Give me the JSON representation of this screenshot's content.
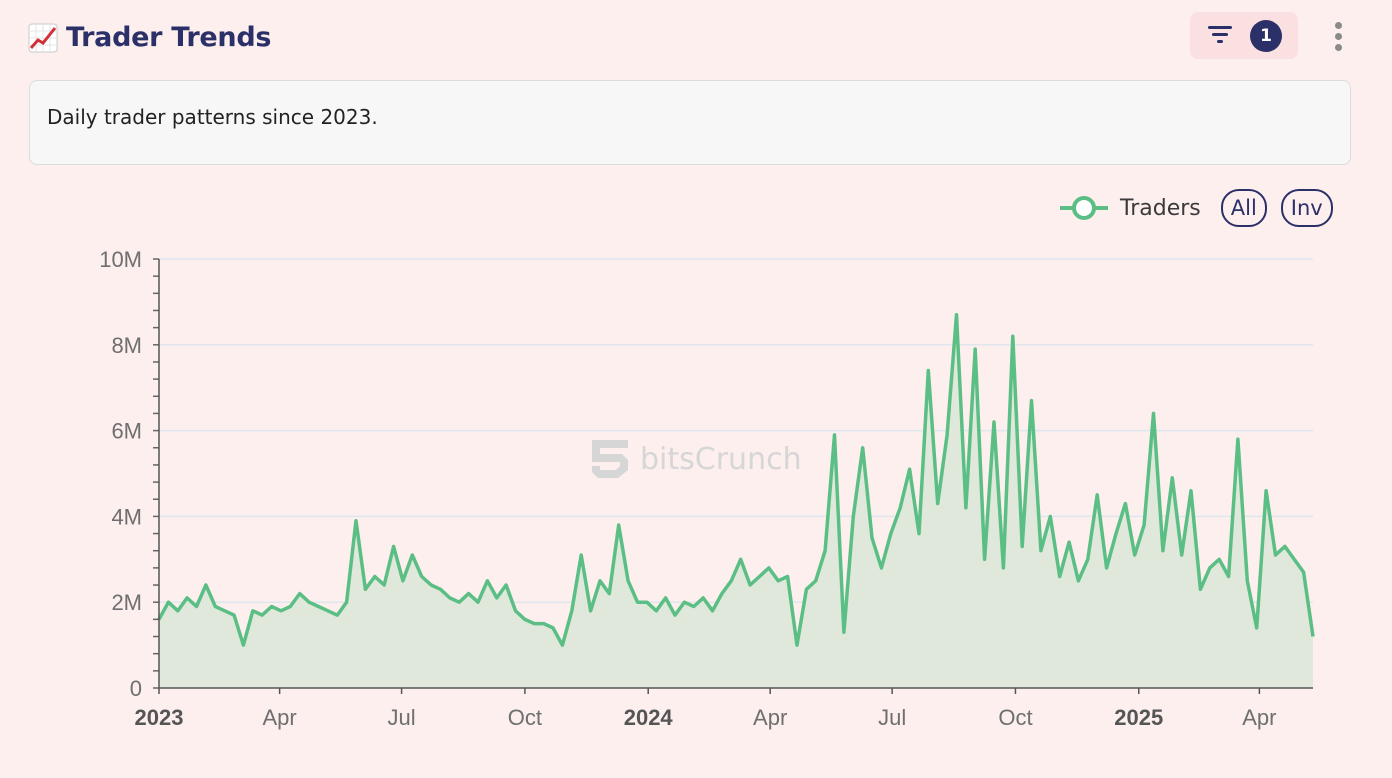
{
  "header": {
    "title": "Trader Trends",
    "emoji_icon": "chart-increasing-icon",
    "filter_icon": "filter-icon",
    "filter_count": "1",
    "menu_icon": "kebab-menu-icon"
  },
  "description": "Daily trader patterns since 2023.",
  "legend": {
    "series_label": "Traders",
    "all_label": "All",
    "inv_label": "Inv"
  },
  "watermark": "bitsCrunch",
  "colors": {
    "line": "#5bbf85",
    "area": "#dfe8da",
    "accent": "#2b3068"
  },
  "chart_data": {
    "type": "area",
    "series": [
      {
        "name": "Traders",
        "points": [
          [
            "2023-01-01",
            1.6
          ],
          [
            "2023-01-08",
            2.0
          ],
          [
            "2023-01-15",
            1.8
          ],
          [
            "2023-01-22",
            2.1
          ],
          [
            "2023-01-29",
            1.9
          ],
          [
            "2023-02-05",
            2.4
          ],
          [
            "2023-02-12",
            1.9
          ],
          [
            "2023-02-19",
            1.8
          ],
          [
            "2023-02-26",
            1.7
          ],
          [
            "2023-03-05",
            1.0
          ],
          [
            "2023-03-12",
            1.8
          ],
          [
            "2023-03-19",
            1.7
          ],
          [
            "2023-03-26",
            1.9
          ],
          [
            "2023-04-02",
            1.8
          ],
          [
            "2023-04-09",
            1.9
          ],
          [
            "2023-04-16",
            2.2
          ],
          [
            "2023-04-23",
            2.0
          ],
          [
            "2023-04-30",
            1.9
          ],
          [
            "2023-05-07",
            1.8
          ],
          [
            "2023-05-14",
            1.7
          ],
          [
            "2023-05-21",
            2.0
          ],
          [
            "2023-05-28",
            3.9
          ],
          [
            "2023-06-04",
            2.3
          ],
          [
            "2023-06-11",
            2.6
          ],
          [
            "2023-06-18",
            2.4
          ],
          [
            "2023-06-25",
            3.3
          ],
          [
            "2023-07-02",
            2.5
          ],
          [
            "2023-07-09",
            3.1
          ],
          [
            "2023-07-16",
            2.6
          ],
          [
            "2023-07-23",
            2.4
          ],
          [
            "2023-07-30",
            2.3
          ],
          [
            "2023-08-06",
            2.1
          ],
          [
            "2023-08-13",
            2.0
          ],
          [
            "2023-08-20",
            2.2
          ],
          [
            "2023-08-27",
            2.0
          ],
          [
            "2023-09-03",
            2.5
          ],
          [
            "2023-09-10",
            2.1
          ],
          [
            "2023-09-17",
            2.4
          ],
          [
            "2023-09-24",
            1.8
          ],
          [
            "2023-10-01",
            1.6
          ],
          [
            "2023-10-08",
            1.5
          ],
          [
            "2023-10-15",
            1.5
          ],
          [
            "2023-10-22",
            1.4
          ],
          [
            "2023-10-29",
            1.0
          ],
          [
            "2023-11-05",
            1.8
          ],
          [
            "2023-11-12",
            3.1
          ],
          [
            "2023-11-19",
            1.8
          ],
          [
            "2023-11-26",
            2.5
          ],
          [
            "2023-12-03",
            2.2
          ],
          [
            "2023-12-10",
            3.8
          ],
          [
            "2023-12-17",
            2.5
          ],
          [
            "2023-12-24",
            2.0
          ],
          [
            "2023-12-31",
            2.0
          ],
          [
            "2024-01-07",
            1.8
          ],
          [
            "2024-01-14",
            2.1
          ],
          [
            "2024-01-21",
            1.7
          ],
          [
            "2024-01-28",
            2.0
          ],
          [
            "2024-02-04",
            1.9
          ],
          [
            "2024-02-11",
            2.1
          ],
          [
            "2024-02-18",
            1.8
          ],
          [
            "2024-02-25",
            2.2
          ],
          [
            "2024-03-03",
            2.5
          ],
          [
            "2024-03-10",
            3.0
          ],
          [
            "2024-03-17",
            2.4
          ],
          [
            "2024-03-24",
            2.6
          ],
          [
            "2024-03-31",
            2.8
          ],
          [
            "2024-04-07",
            2.5
          ],
          [
            "2024-04-14",
            2.6
          ],
          [
            "2024-04-21",
            1.0
          ],
          [
            "2024-04-28",
            2.3
          ],
          [
            "2024-05-05",
            2.5
          ],
          [
            "2024-05-12",
            3.2
          ],
          [
            "2024-05-19",
            5.9
          ],
          [
            "2024-05-26",
            1.3
          ],
          [
            "2024-06-02",
            4.0
          ],
          [
            "2024-06-09",
            5.6
          ],
          [
            "2024-06-16",
            3.5
          ],
          [
            "2024-06-23",
            2.8
          ],
          [
            "2024-06-30",
            3.6
          ],
          [
            "2024-07-07",
            4.2
          ],
          [
            "2024-07-14",
            5.1
          ],
          [
            "2024-07-21",
            3.6
          ],
          [
            "2024-07-28",
            7.4
          ],
          [
            "2024-08-04",
            4.3
          ],
          [
            "2024-08-11",
            5.9
          ],
          [
            "2024-08-18",
            8.7
          ],
          [
            "2024-08-25",
            4.2
          ],
          [
            "2024-09-01",
            7.9
          ],
          [
            "2024-09-08",
            3.0
          ],
          [
            "2024-09-15",
            6.2
          ],
          [
            "2024-09-22",
            2.8
          ],
          [
            "2024-09-29",
            8.2
          ],
          [
            "2024-10-06",
            3.3
          ],
          [
            "2024-10-13",
            6.7
          ],
          [
            "2024-10-20",
            3.2
          ],
          [
            "2024-10-27",
            4.0
          ],
          [
            "2024-11-03",
            2.6
          ],
          [
            "2024-11-10",
            3.4
          ],
          [
            "2024-11-17",
            2.5
          ],
          [
            "2024-11-24",
            3.0
          ],
          [
            "2024-12-01",
            4.5
          ],
          [
            "2024-12-08",
            2.8
          ],
          [
            "2024-12-15",
            3.6
          ],
          [
            "2024-12-22",
            4.3
          ],
          [
            "2024-12-29",
            3.1
          ],
          [
            "2025-01-05",
            3.8
          ],
          [
            "2025-01-12",
            6.4
          ],
          [
            "2025-01-19",
            3.2
          ],
          [
            "2025-01-26",
            4.9
          ],
          [
            "2025-02-02",
            3.1
          ],
          [
            "2025-02-09",
            4.6
          ],
          [
            "2025-02-16",
            2.3
          ],
          [
            "2025-02-23",
            2.8
          ],
          [
            "2025-03-02",
            3.0
          ],
          [
            "2025-03-09",
            2.6
          ],
          [
            "2025-03-16",
            5.8
          ],
          [
            "2025-03-23",
            2.5
          ],
          [
            "2025-03-30",
            1.4
          ],
          [
            "2025-04-06",
            4.6
          ],
          [
            "2025-04-13",
            3.1
          ],
          [
            "2025-04-20",
            3.3
          ],
          [
            "2025-04-27",
            3.0
          ],
          [
            "2025-05-04",
            2.7
          ],
          [
            "2025-05-11",
            1.2
          ]
        ]
      }
    ],
    "xlabel": "",
    "ylabel": "",
    "y_unit": "M",
    "ylim": [
      0,
      10
    ],
    "yticks": [
      0,
      2,
      4,
      6,
      8,
      10
    ],
    "ytick_labels": [
      "0",
      "2M",
      "4M",
      "6M",
      "8M",
      "10M"
    ],
    "xticks": [
      {
        "date": "2023-01-01",
        "label": "2023",
        "bold": true
      },
      {
        "date": "2023-04-01",
        "label": "Apr",
        "bold": false
      },
      {
        "date": "2023-07-01",
        "label": "Jul",
        "bold": false
      },
      {
        "date": "2023-10-01",
        "label": "Oct",
        "bold": false
      },
      {
        "date": "2024-01-01",
        "label": "2024",
        "bold": true
      },
      {
        "date": "2024-04-01",
        "label": "Apr",
        "bold": false
      },
      {
        "date": "2024-07-01",
        "label": "Jul",
        "bold": false
      },
      {
        "date": "2024-10-01",
        "label": "Oct",
        "bold": false
      },
      {
        "date": "2025-01-01",
        "label": "2025",
        "bold": true
      },
      {
        "date": "2025-04-01",
        "label": "Apr",
        "bold": false
      }
    ],
    "xlim": [
      "2023-01-01",
      "2025-05-11"
    ],
    "grid": true,
    "legend_position": "top-right"
  }
}
